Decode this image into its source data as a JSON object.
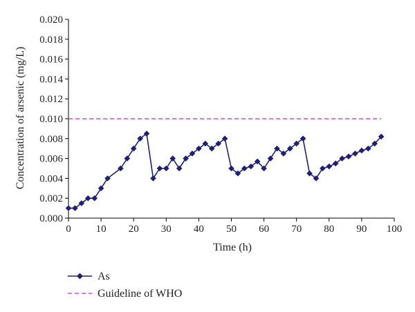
{
  "chart_data": {
    "type": "line",
    "xlabel": "Time (h)",
    "ylabel": "Concentration of arsenic (mg/L)",
    "xlim": [
      0,
      100
    ],
    "ylim": [
      0,
      0.02
    ],
    "x_ticks": [
      "0",
      "10",
      "20",
      "30",
      "40",
      "50",
      "60",
      "70",
      "80",
      "90",
      "100"
    ],
    "y_ticks": [
      "0.000",
      "0.002",
      "0.004",
      "0.006",
      "0.008",
      "0.010",
      "0.012",
      "0.014",
      "0.016",
      "0.018",
      "0.020"
    ],
    "grid": false,
    "legend_position": "bottom-left",
    "series": [
      {
        "name": "As",
        "color": "#1f1f7a",
        "marker": "diamond",
        "points": [
          [
            0,
            0.001
          ],
          [
            2,
            0.001
          ],
          [
            4,
            0.0015
          ],
          [
            6,
            0.002
          ],
          [
            8,
            0.002
          ],
          [
            10,
            0.003
          ],
          [
            12,
            0.004
          ],
          [
            16,
            0.005
          ],
          [
            18,
            0.006
          ],
          [
            20,
            0.007
          ],
          [
            22,
            0.008
          ],
          [
            24,
            0.0085
          ],
          [
            26,
            0.004
          ],
          [
            28,
            0.005
          ],
          [
            30,
            0.005
          ],
          [
            32,
            0.006
          ],
          [
            34,
            0.005
          ],
          [
            36,
            0.006
          ],
          [
            38,
            0.0065
          ],
          [
            40,
            0.007
          ],
          [
            42,
            0.0075
          ],
          [
            44,
            0.007
          ],
          [
            46,
            0.0075
          ],
          [
            48,
            0.008
          ],
          [
            50,
            0.005
          ],
          [
            52,
            0.0045
          ],
          [
            54,
            0.005
          ],
          [
            56,
            0.0052
          ],
          [
            58,
            0.0057
          ],
          [
            60,
            0.005
          ],
          [
            62,
            0.006
          ],
          [
            64,
            0.007
          ],
          [
            66,
            0.0065
          ],
          [
            68,
            0.007
          ],
          [
            70,
            0.0075
          ],
          [
            72,
            0.008
          ],
          [
            74,
            0.0045
          ],
          [
            76,
            0.004
          ],
          [
            78,
            0.005
          ],
          [
            80,
            0.0052
          ],
          [
            82,
            0.0055
          ],
          [
            84,
            0.006
          ],
          [
            86,
            0.0062
          ],
          [
            88,
            0.0065
          ],
          [
            90,
            0.0068
          ],
          [
            92,
            0.007
          ],
          [
            94,
            0.0075
          ],
          [
            96,
            0.0082
          ]
        ]
      },
      {
        "name": "Guideline of WHO",
        "color": "#e040e0",
        "style": "dashed",
        "points": [
          [
            0,
            0.01
          ],
          [
            96,
            0.01
          ]
        ]
      }
    ]
  }
}
